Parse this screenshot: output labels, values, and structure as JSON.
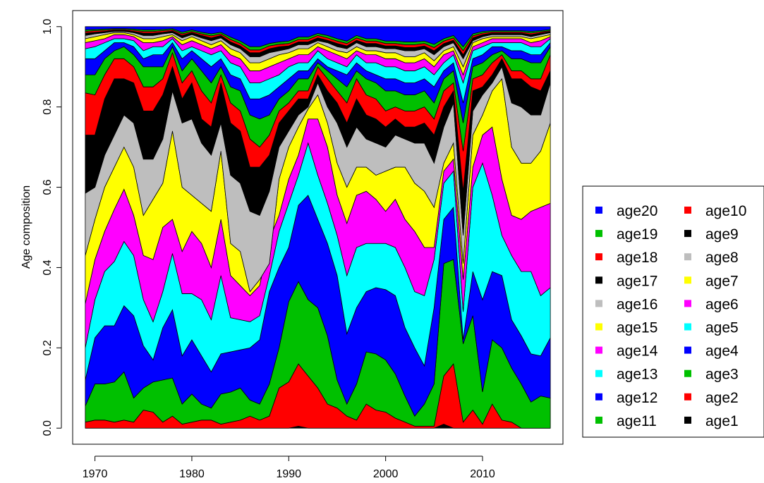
{
  "chart_data": {
    "type": "area",
    "stacked": true,
    "normalized": true,
    "xlabel": "",
    "ylabel": "Age composition",
    "xlim": [
      1967.7,
      2018.3
    ],
    "ylim": [
      -0.04,
      1.04
    ],
    "x_ticks": [
      1970,
      1980,
      1990,
      2000,
      2010
    ],
    "y_ticks": [
      "0.0",
      "0.2",
      "0.4",
      "0.6",
      "0.8",
      "1.0"
    ],
    "legend_position": "right",
    "legend_columns": [
      [
        "age20",
        "age19",
        "age18",
        "age17",
        "age16",
        "age15",
        "age14",
        "age13",
        "age12",
        "age11"
      ],
      [
        "age10",
        "age9",
        "age8",
        "age7",
        "age6",
        "age5",
        "age4",
        "age3",
        "age2",
        "age1"
      ]
    ],
    "x": [
      1969,
      1970,
      1971,
      1972,
      1973,
      1974,
      1975,
      1976,
      1977,
      1978,
      1979,
      1980,
      1981,
      1982,
      1983,
      1984,
      1985,
      1986,
      1987,
      1988,
      1989,
      1990,
      1991,
      1992,
      1993,
      1994,
      1995,
      1996,
      1997,
      1998,
      1999,
      2000,
      2001,
      2002,
      2003,
      2004,
      2005,
      2006,
      2007,
      2008,
      2009,
      2010,
      2011,
      2012,
      2013,
      2014,
      2015,
      2016,
      2017
    ],
    "cumulative_note": "values below are cumulative tops of each band, from age1 (bottom) to age20 (top)",
    "series": [
      {
        "name": "age1",
        "color": "#000000",
        "values": [
          0.0,
          0.0,
          0.0,
          0.0,
          0.0,
          0.0,
          0.0,
          0.0,
          0.0,
          0.0,
          0.0,
          0.0,
          0.0,
          0.0,
          0.0,
          0.0,
          0.0,
          0.0,
          0.0,
          0.0,
          0.0,
          0.0,
          0.005,
          0.0,
          0.0,
          0.0,
          0.0,
          0.0,
          0.0,
          0.0,
          0.0,
          0.0,
          0.0,
          0.0,
          0.0,
          0.0,
          0.0,
          0.01,
          0.0,
          0.0,
          0.0,
          0.0,
          0.0,
          0.0,
          0.0,
          0.0,
          0.0,
          0.0,
          0.0
        ]
      },
      {
        "name": "age2",
        "color": "#ff0000",
        "values": [
          0.015,
          0.02,
          0.02,
          0.015,
          0.02,
          0.015,
          0.045,
          0.04,
          0.015,
          0.03,
          0.01,
          0.015,
          0.02,
          0.02,
          0.01,
          0.015,
          0.02,
          0.03,
          0.02,
          0.03,
          0.1,
          0.115,
          0.16,
          0.13,
          0.1,
          0.06,
          0.05,
          0.03,
          0.02,
          0.06,
          0.045,
          0.04,
          0.025,
          0.015,
          0.005,
          0.005,
          0.005,
          0.13,
          0.16,
          0.015,
          0.045,
          0.01,
          0.06,
          0.02,
          0.015,
          0.0,
          0.0,
          0.0,
          0.0
        ]
      },
      {
        "name": "age3",
        "color": "#00c000",
        "values": [
          0.055,
          0.11,
          0.11,
          0.115,
          0.14,
          0.075,
          0.1,
          0.115,
          0.12,
          0.125,
          0.06,
          0.085,
          0.06,
          0.05,
          0.085,
          0.09,
          0.1,
          0.07,
          0.06,
          0.11,
          0.2,
          0.315,
          0.365,
          0.32,
          0.3,
          0.23,
          0.12,
          0.06,
          0.11,
          0.19,
          0.185,
          0.17,
          0.135,
          0.08,
          0.03,
          0.06,
          0.11,
          0.41,
          0.42,
          0.21,
          0.28,
          0.09,
          0.22,
          0.2,
          0.15,
          0.11,
          0.065,
          0.08,
          0.075
        ]
      },
      {
        "name": "age4",
        "color": "#0000ff",
        "values": [
          0.12,
          0.225,
          0.255,
          0.255,
          0.305,
          0.28,
          0.205,
          0.17,
          0.25,
          0.295,
          0.18,
          0.22,
          0.18,
          0.14,
          0.185,
          0.19,
          0.195,
          0.2,
          0.22,
          0.34,
          0.4,
          0.45,
          0.555,
          0.58,
          0.52,
          0.46,
          0.38,
          0.235,
          0.3,
          0.34,
          0.35,
          0.345,
          0.33,
          0.25,
          0.2,
          0.155,
          0.3,
          0.52,
          0.55,
          0.22,
          0.39,
          0.32,
          0.39,
          0.38,
          0.27,
          0.23,
          0.185,
          0.18,
          0.225
        ]
      },
      {
        "name": "age5",
        "color": "#00ffff",
        "values": [
          0.2,
          0.32,
          0.39,
          0.415,
          0.465,
          0.43,
          0.32,
          0.265,
          0.34,
          0.435,
          0.335,
          0.335,
          0.32,
          0.27,
          0.38,
          0.275,
          0.27,
          0.265,
          0.28,
          0.38,
          0.49,
          0.56,
          0.63,
          0.71,
          0.63,
          0.56,
          0.48,
          0.38,
          0.45,
          0.46,
          0.46,
          0.46,
          0.45,
          0.4,
          0.34,
          0.33,
          0.42,
          0.61,
          0.64,
          0.29,
          0.6,
          0.66,
          0.58,
          0.48,
          0.43,
          0.39,
          0.39,
          0.33,
          0.35
        ]
      },
      {
        "name": "age6",
        "color": "#ff00ff",
        "values": [
          0.31,
          0.42,
          0.49,
          0.545,
          0.595,
          0.53,
          0.43,
          0.42,
          0.5,
          0.52,
          0.44,
          0.49,
          0.46,
          0.4,
          0.52,
          0.38,
          0.355,
          0.33,
          0.355,
          0.47,
          0.53,
          0.62,
          0.68,
          0.77,
          0.77,
          0.7,
          0.58,
          0.51,
          0.58,
          0.59,
          0.57,
          0.54,
          0.57,
          0.52,
          0.49,
          0.45,
          0.45,
          0.64,
          0.67,
          0.37,
          0.65,
          0.73,
          0.75,
          0.62,
          0.53,
          0.52,
          0.54,
          0.55,
          0.56
        ]
      },
      {
        "name": "age7",
        "color": "#ffff00",
        "values": [
          0.43,
          0.52,
          0.6,
          0.65,
          0.7,
          0.65,
          0.53,
          0.57,
          0.61,
          0.74,
          0.6,
          0.58,
          0.56,
          0.54,
          0.69,
          0.46,
          0.44,
          0.34,
          0.37,
          0.41,
          0.62,
          0.7,
          0.75,
          0.795,
          0.83,
          0.76,
          0.66,
          0.6,
          0.65,
          0.65,
          0.63,
          0.64,
          0.65,
          0.65,
          0.61,
          0.59,
          0.55,
          0.66,
          0.71,
          0.41,
          0.73,
          0.78,
          0.84,
          0.87,
          0.7,
          0.66,
          0.66,
          0.69,
          0.76
        ]
      },
      {
        "name": "age8",
        "color": "#bebebe",
        "values": [
          0.585,
          0.6,
          0.68,
          0.73,
          0.78,
          0.76,
          0.67,
          0.67,
          0.72,
          0.84,
          0.76,
          0.77,
          0.71,
          0.68,
          0.76,
          0.63,
          0.61,
          0.54,
          0.53,
          0.59,
          0.7,
          0.74,
          0.78,
          0.8,
          0.86,
          0.8,
          0.76,
          0.7,
          0.75,
          0.72,
          0.71,
          0.7,
          0.73,
          0.72,
          0.71,
          0.71,
          0.66,
          0.75,
          0.81,
          0.48,
          0.79,
          0.83,
          0.86,
          0.9,
          0.81,
          0.8,
          0.78,
          0.78,
          0.86
        ]
      },
      {
        "name": "age9",
        "color": "#000000",
        "values": [
          0.73,
          0.73,
          0.82,
          0.87,
          0.87,
          0.86,
          0.79,
          0.79,
          0.83,
          0.9,
          0.82,
          0.86,
          0.77,
          0.75,
          0.86,
          0.76,
          0.74,
          0.65,
          0.65,
          0.68,
          0.76,
          0.79,
          0.82,
          0.82,
          0.88,
          0.84,
          0.81,
          0.76,
          0.82,
          0.78,
          0.77,
          0.75,
          0.77,
          0.75,
          0.75,
          0.76,
          0.73,
          0.8,
          0.84,
          0.59,
          0.84,
          0.85,
          0.88,
          0.92,
          0.87,
          0.87,
          0.85,
          0.84,
          0.89
        ]
      },
      {
        "name": "age10",
        "color": "#ff0000",
        "values": [
          0.835,
          0.83,
          0.88,
          0.92,
          0.92,
          0.9,
          0.85,
          0.85,
          0.87,
          0.935,
          0.86,
          0.89,
          0.84,
          0.81,
          0.88,
          0.81,
          0.79,
          0.72,
          0.7,
          0.73,
          0.79,
          0.81,
          0.84,
          0.84,
          0.9,
          0.87,
          0.84,
          0.81,
          0.87,
          0.83,
          0.82,
          0.79,
          0.8,
          0.79,
          0.79,
          0.8,
          0.77,
          0.84,
          0.86,
          0.69,
          0.87,
          0.88,
          0.91,
          0.93,
          0.89,
          0.89,
          0.87,
          0.87,
          0.93
        ]
      },
      {
        "name": "age11",
        "color": "#00c000",
        "values": [
          0.88,
          0.88,
          0.92,
          0.94,
          0.95,
          0.93,
          0.9,
          0.9,
          0.9,
          0.95,
          0.89,
          0.92,
          0.89,
          0.86,
          0.9,
          0.85,
          0.84,
          0.78,
          0.77,
          0.78,
          0.82,
          0.84,
          0.87,
          0.87,
          0.91,
          0.89,
          0.87,
          0.85,
          0.89,
          0.87,
          0.86,
          0.84,
          0.84,
          0.83,
          0.83,
          0.84,
          0.81,
          0.87,
          0.89,
          0.76,
          0.9,
          0.91,
          0.93,
          0.94,
          0.92,
          0.92,
          0.91,
          0.91,
          0.95
        ]
      },
      {
        "name": "age12",
        "color": "#0000ff",
        "values": [
          0.92,
          0.92,
          0.94,
          0.96,
          0.96,
          0.95,
          0.92,
          0.93,
          0.93,
          0.96,
          0.92,
          0.94,
          0.92,
          0.9,
          0.92,
          0.88,
          0.87,
          0.82,
          0.82,
          0.83,
          0.85,
          0.87,
          0.89,
          0.89,
          0.92,
          0.9,
          0.89,
          0.88,
          0.91,
          0.89,
          0.88,
          0.87,
          0.87,
          0.86,
          0.86,
          0.87,
          0.85,
          0.89,
          0.91,
          0.81,
          0.92,
          0.93,
          0.95,
          0.95,
          0.94,
          0.94,
          0.93,
          0.93,
          0.96
        ]
      },
      {
        "name": "age13",
        "color": "#00ffff",
        "values": [
          0.945,
          0.95,
          0.96,
          0.97,
          0.97,
          0.965,
          0.94,
          0.95,
          0.95,
          0.97,
          0.94,
          0.95,
          0.94,
          0.93,
          0.94,
          0.91,
          0.9,
          0.86,
          0.86,
          0.87,
          0.88,
          0.9,
          0.91,
          0.91,
          0.94,
          0.92,
          0.91,
          0.9,
          0.93,
          0.91,
          0.91,
          0.9,
          0.9,
          0.89,
          0.89,
          0.9,
          0.88,
          0.91,
          0.93,
          0.86,
          0.94,
          0.95,
          0.96,
          0.96,
          0.96,
          0.96,
          0.95,
          0.95,
          0.97
        ]
      },
      {
        "name": "age14",
        "color": "#ff00ff",
        "values": [
          0.96,
          0.965,
          0.97,
          0.98,
          0.98,
          0.975,
          0.96,
          0.96,
          0.965,
          0.975,
          0.955,
          0.965,
          0.955,
          0.945,
          0.955,
          0.93,
          0.92,
          0.89,
          0.89,
          0.9,
          0.91,
          0.92,
          0.93,
          0.93,
          0.95,
          0.94,
          0.93,
          0.92,
          0.94,
          0.93,
          0.93,
          0.92,
          0.92,
          0.91,
          0.91,
          0.92,
          0.9,
          0.93,
          0.94,
          0.88,
          0.95,
          0.96,
          0.97,
          0.97,
          0.97,
          0.97,
          0.96,
          0.965,
          0.975
        ]
      },
      {
        "name": "age15",
        "color": "#ffff00",
        "values": [
          0.97,
          0.975,
          0.98,
          0.985,
          0.985,
          0.98,
          0.97,
          0.97,
          0.975,
          0.98,
          0.965,
          0.975,
          0.965,
          0.955,
          0.965,
          0.945,
          0.935,
          0.91,
          0.91,
          0.92,
          0.93,
          0.935,
          0.945,
          0.945,
          0.96,
          0.95,
          0.94,
          0.935,
          0.95,
          0.94,
          0.94,
          0.935,
          0.935,
          0.925,
          0.925,
          0.935,
          0.915,
          0.94,
          0.95,
          0.9,
          0.96,
          0.97,
          0.975,
          0.975,
          0.975,
          0.975,
          0.97,
          0.975,
          0.98
        ]
      },
      {
        "name": "age16",
        "color": "#bebebe",
        "values": [
          0.978,
          0.982,
          0.985,
          0.988,
          0.988,
          0.985,
          0.978,
          0.978,
          0.982,
          0.985,
          0.972,
          0.98,
          0.972,
          0.965,
          0.972,
          0.955,
          0.945,
          0.925,
          0.925,
          0.935,
          0.94,
          0.945,
          0.955,
          0.955,
          0.965,
          0.96,
          0.95,
          0.945,
          0.96,
          0.95,
          0.95,
          0.945,
          0.945,
          0.94,
          0.94,
          0.945,
          0.93,
          0.95,
          0.96,
          0.92,
          0.965,
          0.975,
          0.98,
          0.98,
          0.98,
          0.98,
          0.975,
          0.98,
          0.985
        ]
      },
      {
        "name": "age17",
        "color": "#000000",
        "values": [
          0.984,
          0.986,
          0.988,
          0.991,
          0.991,
          0.988,
          0.984,
          0.984,
          0.986,
          0.989,
          0.978,
          0.985,
          0.978,
          0.972,
          0.978,
          0.962,
          0.952,
          0.935,
          0.935,
          0.945,
          0.95,
          0.952,
          0.962,
          0.962,
          0.972,
          0.966,
          0.958,
          0.952,
          0.966,
          0.958,
          0.958,
          0.952,
          0.952,
          0.948,
          0.948,
          0.952,
          0.94,
          0.958,
          0.966,
          0.93,
          0.972,
          0.98,
          0.984,
          0.984,
          0.984,
          0.984,
          0.98,
          0.984,
          0.988
        ]
      },
      {
        "name": "age18",
        "color": "#ff0000",
        "values": [
          0.988,
          0.99,
          0.991,
          0.993,
          0.993,
          0.991,
          0.988,
          0.988,
          0.99,
          0.992,
          0.982,
          0.988,
          0.982,
          0.977,
          0.982,
          0.968,
          0.958,
          0.942,
          0.942,
          0.952,
          0.956,
          0.958,
          0.968,
          0.968,
          0.978,
          0.972,
          0.964,
          0.958,
          0.972,
          0.964,
          0.964,
          0.958,
          0.958,
          0.955,
          0.955,
          0.958,
          0.948,
          0.964,
          0.972,
          0.94,
          0.977,
          0.984,
          0.987,
          0.987,
          0.987,
          0.987,
          0.984,
          0.987,
          0.99
        ]
      },
      {
        "name": "age19",
        "color": "#00c000",
        "values": [
          0.992,
          0.993,
          0.994,
          0.995,
          0.995,
          0.994,
          0.992,
          0.992,
          0.993,
          0.995,
          0.986,
          0.992,
          0.986,
          0.982,
          0.986,
          0.974,
          0.964,
          0.95,
          0.95,
          0.958,
          0.962,
          0.964,
          0.974,
          0.974,
          0.983,
          0.978,
          0.97,
          0.964,
          0.978,
          0.97,
          0.97,
          0.964,
          0.964,
          0.962,
          0.962,
          0.964,
          0.956,
          0.97,
          0.978,
          0.95,
          0.982,
          0.988,
          0.99,
          0.99,
          0.99,
          0.99,
          0.988,
          0.99,
          0.993
        ]
      },
      {
        "name": "age20",
        "color": "#0000ff",
        "values": [
          1,
          1,
          1,
          1,
          1,
          1,
          1,
          1,
          1,
          1,
          1,
          1,
          1,
          1,
          1,
          1,
          1,
          1,
          1,
          1,
          1,
          1,
          1,
          1,
          1,
          1,
          1,
          1,
          1,
          1,
          1,
          1,
          1,
          1,
          1,
          1,
          1,
          1,
          1,
          1,
          1,
          1,
          1,
          1,
          1,
          1,
          1,
          1,
          1
        ]
      }
    ]
  }
}
